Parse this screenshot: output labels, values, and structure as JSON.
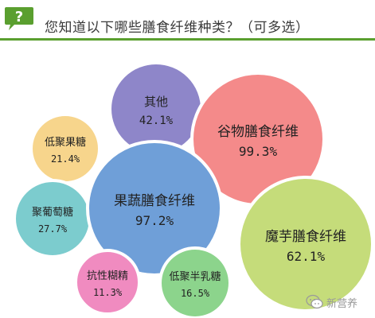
{
  "question": {
    "badge_symbol": "?",
    "text": "您知道以下哪些膳食纤维种类？（可多选）",
    "accent_color": "#5a9f2f"
  },
  "watermark": {
    "text": "新营养",
    "icon": "wechat-icon"
  },
  "chart_data": {
    "type": "bubble",
    "title": "",
    "unit": "%",
    "items": [
      {
        "label": "其他",
        "value": 42.1,
        "value_text": "42.1%",
        "color": "#8e86c9"
      },
      {
        "label": "谷物膳食纤维",
        "value": 99.3,
        "value_text": "99.3%",
        "color": "#f48a8a"
      },
      {
        "label": "低聚果糖",
        "value": 21.4,
        "value_text": "21.4%",
        "color": "#f7d58c"
      },
      {
        "label": "果蔬膳食纤维",
        "value": 97.2,
        "value_text": "97.2%",
        "color": "#6f9fd8"
      },
      {
        "label": "聚葡萄糖",
        "value": 27.7,
        "value_text": "27.7%",
        "color": "#7cccce"
      },
      {
        "label": "魔芋膳食纤维",
        "value": 62.1,
        "value_text": "62.1%",
        "color": "#c5dc7a"
      },
      {
        "label": "抗性糊精",
        "value": 11.3,
        "value_text": "11.3%",
        "color": "#f08bc0"
      },
      {
        "label": "低聚半乳糖",
        "value": 16.5,
        "value_text": "16.5%",
        "color": "#8cd48c"
      }
    ]
  }
}
